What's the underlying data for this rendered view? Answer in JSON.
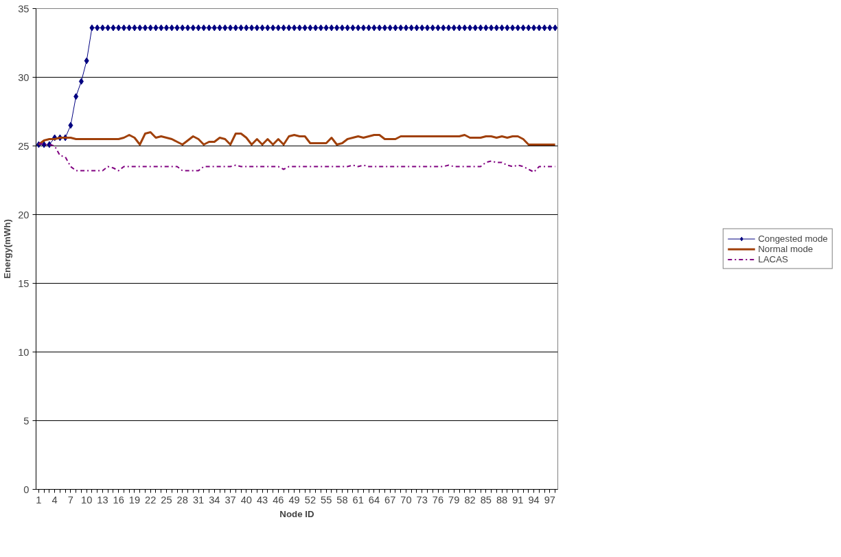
{
  "chart_data": {
    "type": "line",
    "xlabel": "Node ID",
    "ylabel": "Energy(mWh)",
    "categories": [
      "1",
      null,
      null,
      "4",
      null,
      null,
      "7",
      null,
      null,
      "10",
      null,
      null,
      "13",
      null,
      null,
      "16",
      null,
      null,
      "19",
      null,
      null,
      "22",
      null,
      null,
      "25",
      null,
      null,
      "28",
      null,
      null,
      "31",
      null,
      null,
      "34",
      null,
      null,
      "37",
      null,
      null,
      "40",
      null,
      null,
      "43",
      null,
      null,
      "46",
      null,
      null,
      "49",
      null,
      null,
      "52",
      null,
      null,
      "55",
      null,
      null,
      "58",
      null,
      null,
      "61",
      null,
      null,
      "64",
      null,
      null,
      "67",
      null,
      null,
      "70",
      null,
      null,
      "73",
      null,
      null,
      "76",
      null,
      null,
      "79",
      null,
      null,
      "82",
      null,
      null,
      "85",
      null,
      null,
      "88",
      null,
      null,
      "91",
      null,
      null,
      "94",
      null,
      null,
      "97",
      null
    ],
    "ylim": [
      0,
      35
    ],
    "yticks": [
      0,
      5,
      10,
      15,
      20,
      25,
      30,
      35
    ],
    "grid": "y",
    "legend": "right",
    "series": [
      {
        "name": "Congested mode",
        "color": "#000080",
        "marker": "diamond",
        "line_style": "solid",
        "values": [
          25.1,
          25.1,
          25.1,
          25.6,
          25.6,
          25.6,
          26.5,
          28.6,
          29.7,
          31.2,
          33.6,
          33.6,
          33.6,
          33.6,
          33.6,
          33.6,
          33.6,
          33.6,
          33.6,
          33.6,
          33.6,
          33.6,
          33.6,
          33.6,
          33.6,
          33.6,
          33.6,
          33.6,
          33.6,
          33.6,
          33.6,
          33.6,
          33.6,
          33.6,
          33.6,
          33.6,
          33.6,
          33.6,
          33.6,
          33.6,
          33.6,
          33.6,
          33.6,
          33.6,
          33.6,
          33.6,
          33.6,
          33.6,
          33.6,
          33.6,
          33.6,
          33.6,
          33.6,
          33.6,
          33.6,
          33.6,
          33.6,
          33.6,
          33.6,
          33.6,
          33.6,
          33.6,
          33.6,
          33.6,
          33.6,
          33.6,
          33.6,
          33.6,
          33.6,
          33.6,
          33.6,
          33.6,
          33.6,
          33.6,
          33.6,
          33.6,
          33.6,
          33.6,
          33.6,
          33.6,
          33.6,
          33.6,
          33.6,
          33.6,
          33.6,
          33.6,
          33.6,
          33.6,
          33.6,
          33.6,
          33.6,
          33.6,
          33.6,
          33.6,
          33.6,
          33.6,
          33.6,
          33.6
        ]
      },
      {
        "name": "Normal mode",
        "color": "#a0400a",
        "marker": "none",
        "line_style": "solid",
        "values": [
          25.1,
          25.4,
          25.5,
          25.5,
          25.6,
          25.6,
          25.6,
          25.5,
          25.5,
          25.5,
          25.5,
          25.5,
          25.5,
          25.5,
          25.5,
          25.5,
          25.6,
          25.8,
          25.6,
          25.1,
          25.9,
          26.0,
          25.6,
          25.7,
          25.6,
          25.5,
          25.3,
          25.1,
          25.4,
          25.7,
          25.5,
          25.1,
          25.3,
          25.3,
          25.6,
          25.5,
          25.1,
          25.9,
          25.9,
          25.6,
          25.1,
          25.5,
          25.1,
          25.5,
          25.1,
          25.5,
          25.1,
          25.7,
          25.8,
          25.7,
          25.7,
          25.2,
          25.2,
          25.2,
          25.2,
          25.6,
          25.1,
          25.2,
          25.5,
          25.6,
          25.7,
          25.6,
          25.7,
          25.8,
          25.8,
          25.5,
          25.5,
          25.5,
          25.7,
          25.7,
          25.7,
          25.7,
          25.7,
          25.7,
          25.7,
          25.7,
          25.7,
          25.7,
          25.7,
          25.7,
          25.8,
          25.6,
          25.6,
          25.6,
          25.7,
          25.7,
          25.6,
          25.7,
          25.6,
          25.7,
          25.7,
          25.5,
          25.1,
          25.1,
          25.1,
          25.1,
          25.1,
          25.1
        ]
      },
      {
        "name": "LACAS",
        "color": "#800080",
        "marker": "none",
        "line_style": "dashdot",
        "values": [
          25.2,
          25.1,
          25.1,
          25.0,
          24.3,
          24.2,
          23.5,
          23.2,
          23.2,
          23.2,
          23.2,
          23.2,
          23.2,
          23.5,
          23.4,
          23.2,
          23.5,
          23.5,
          23.5,
          23.5,
          23.5,
          23.5,
          23.5,
          23.5,
          23.5,
          23.5,
          23.5,
          23.2,
          23.2,
          23.2,
          23.2,
          23.5,
          23.5,
          23.5,
          23.5,
          23.5,
          23.5,
          23.6,
          23.5,
          23.5,
          23.5,
          23.5,
          23.5,
          23.5,
          23.5,
          23.5,
          23.3,
          23.5,
          23.5,
          23.5,
          23.5,
          23.5,
          23.5,
          23.5,
          23.5,
          23.5,
          23.5,
          23.5,
          23.5,
          23.6,
          23.5,
          23.6,
          23.5,
          23.5,
          23.5,
          23.5,
          23.5,
          23.5,
          23.5,
          23.5,
          23.5,
          23.5,
          23.5,
          23.5,
          23.5,
          23.5,
          23.5,
          23.6,
          23.5,
          23.5,
          23.5,
          23.5,
          23.5,
          23.5,
          23.8,
          23.9,
          23.8,
          23.8,
          23.6,
          23.5,
          23.6,
          23.5,
          23.3,
          23.1,
          23.5,
          23.5,
          23.5,
          23.5
        ]
      }
    ]
  }
}
